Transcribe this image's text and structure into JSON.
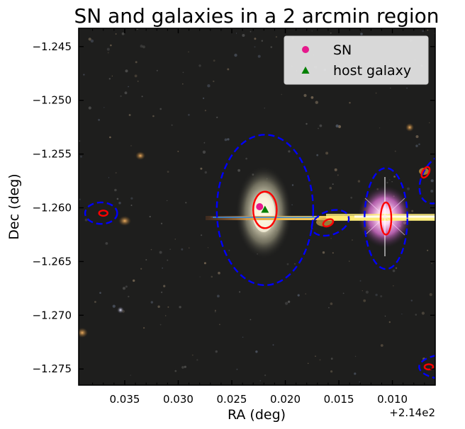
{
  "chart_data": {
    "type": "scatter",
    "title": "SN and galaxies in a 2 arcmin region",
    "xlabel": "RA (deg)",
    "ylabel": "Dec (deg)",
    "x_offset_label": "+2.14e2",
    "xlim": [
      214.0393,
      214.006
    ],
    "ylim": [
      -1.2765,
      -1.2433
    ],
    "x_ticks": [
      0.035,
      0.03,
      0.025,
      0.02,
      0.015,
      0.01
    ],
    "x_tick_labels": [
      "0.035",
      "0.030",
      "0.025",
      "0.020",
      "0.015",
      "0.010"
    ],
    "y_ticks": [
      -1.245,
      -1.25,
      -1.255,
      -1.26,
      -1.265,
      -1.27,
      -1.275
    ],
    "y_tick_labels": [
      "−1.245",
      "−1.250",
      "−1.255",
      "−1.260",
      "−1.265",
      "−1.270",
      "−1.275"
    ],
    "grid": false,
    "legend_position": "top-right",
    "series": [
      {
        "name": "SN",
        "marker": "circle",
        "color": "#e6198c",
        "points": [
          {
            "x": 214.0224,
            "y": -1.2599
          }
        ]
      },
      {
        "name": "host galaxy",
        "marker": "triangle",
        "color": "#008000",
        "points": [
          {
            "x": 214.0219,
            "y": -1.2602
          }
        ]
      }
    ],
    "ellipses": [
      {
        "style": "blue-dashed",
        "color": "#0000ff",
        "x": 214.0219,
        "y": -1.2602,
        "ra_semi": 0.0045,
        "dec_semi": 0.007,
        "angle_deg": 0
      },
      {
        "style": "red-solid",
        "color": "#ff0000",
        "x": 214.0219,
        "y": -1.2602,
        "ra_semi": 0.0011,
        "dec_semi": 0.0017,
        "angle_deg": 0
      },
      {
        "style": "blue-dashed",
        "color": "#0000ff",
        "x": 214.0106,
        "y": -1.261,
        "ra_semi": 0.002,
        "dec_semi": 0.0047,
        "angle_deg": 0
      },
      {
        "style": "red-solid",
        "color": "#ff0000",
        "x": 214.0106,
        "y": -1.261,
        "ra_semi": 0.0005,
        "dec_semi": 0.0015,
        "angle_deg": 0
      },
      {
        "style": "blue-dashed",
        "color": "#0000ff",
        "x": 214.0372,
        "y": -1.2605,
        "ra_semi": 0.0015,
        "dec_semi": 0.001,
        "angle_deg": 0
      },
      {
        "style": "red-solid",
        "color": "#ff0000",
        "x": 214.037,
        "y": -1.2605,
        "ra_semi": 0.0004,
        "dec_semi": 0.00025,
        "angle_deg": 0
      },
      {
        "style": "blue-dashed",
        "color": "#0000ff",
        "x": 214.0158,
        "y": -1.2614,
        "ra_semi": 0.0018,
        "dec_semi": 0.0011,
        "angle_deg": -20
      },
      {
        "style": "red-solid",
        "color": "#ff0000",
        "x": 214.016,
        "y": -1.2614,
        "ra_semi": 0.0005,
        "dec_semi": 0.0003,
        "angle_deg": -25
      },
      {
        "style": "blue-dashed",
        "color": "#0000ff",
        "x": 214.0056,
        "y": -1.2573,
        "ra_semi": 0.0025,
        "dec_semi": 0.0016,
        "angle_deg": -60
      },
      {
        "style": "red-solid",
        "color": "#ff0000",
        "x": 214.0069,
        "y": -1.2567,
        "ra_semi": 0.00055,
        "dec_semi": 0.0003,
        "angle_deg": -60
      },
      {
        "style": "blue-dashed",
        "color": "#0000ff",
        "x": 214.0045,
        "y": -1.2748,
        "ra_semi": 0.003,
        "dec_semi": 0.0012,
        "angle_deg": 0
      },
      {
        "style": "red-solid",
        "color": "#ff0000",
        "x": 214.0066,
        "y": -1.2748,
        "ra_semi": 0.0004,
        "dec_semi": 0.00025,
        "angle_deg": 0
      }
    ]
  }
}
